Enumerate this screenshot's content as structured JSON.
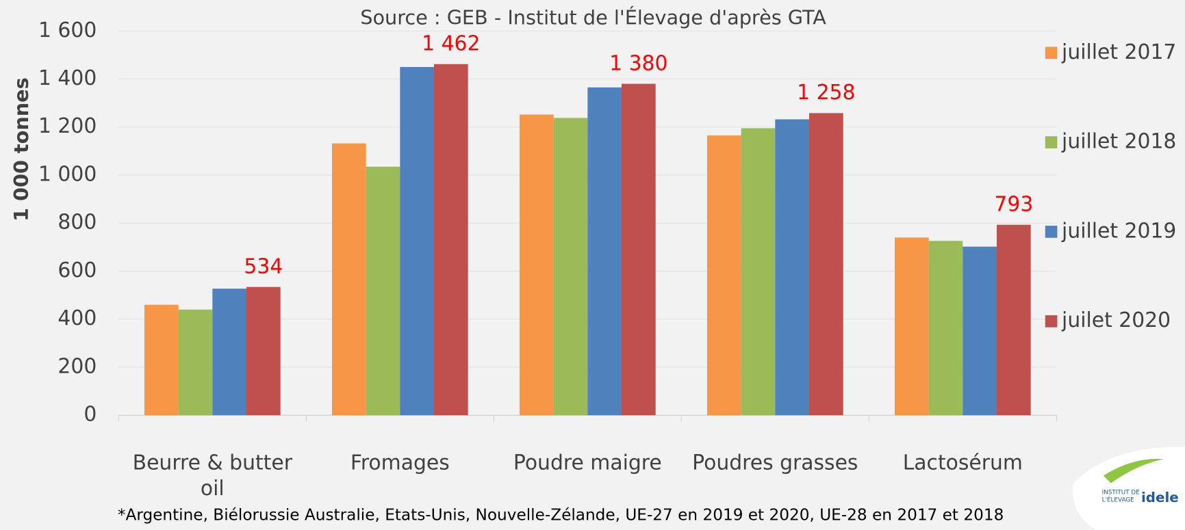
{
  "chart_data": {
    "type": "bar",
    "title": "Source : GEB - Institut de l'Élevage d'après GTA",
    "y_label": "1 000 tonnes",
    "footnote": "*Argentine, Biélorussie Australie, Etats-Unis, Nouvelle-Zélande, UE-27 en 2019 et 2020, UE-28 en 2017 et 2018",
    "categories": [
      "Beurre & butter oil",
      "Fromages",
      "Poudre maigre",
      "Poudres grasses",
      "Lactosérum"
    ],
    "series": [
      {
        "name": "juillet 2017",
        "color": "#f79646",
        "values": [
          460,
          1132,
          1252,
          1165,
          740
        ]
      },
      {
        "name": "juillet 2018",
        "color": "#9bbb59",
        "values": [
          440,
          1035,
          1238,
          1195,
          726
        ]
      },
      {
        "name": "juillet 2019",
        "color": "#4f81bd",
        "values": [
          527,
          1450,
          1365,
          1232,
          702
        ]
      },
      {
        "name": "juilet 2020",
        "color": "#c0504d",
        "values": [
          534,
          1462,
          1380,
          1258,
          793
        ],
        "value_labels": [
          "534",
          "1 462",
          "1 380",
          "1 258",
          "793"
        ]
      }
    ],
    "ylim": [
      0,
      1600
    ],
    "yticks": [
      0,
      200,
      400,
      600,
      800,
      {
        "value": 1000,
        "label": "1 000"
      },
      {
        "value": 1200,
        "label": "1 200"
      },
      {
        "value": 1400,
        "label": "1 400"
      },
      {
        "value": 1600,
        "label": "1 600"
      }
    ],
    "grid": true,
    "legend": "right"
  },
  "logo": {
    "line1": "INSTITUT DE",
    "line2": "L'ÉLEVAGE",
    "brand": "idele"
  }
}
